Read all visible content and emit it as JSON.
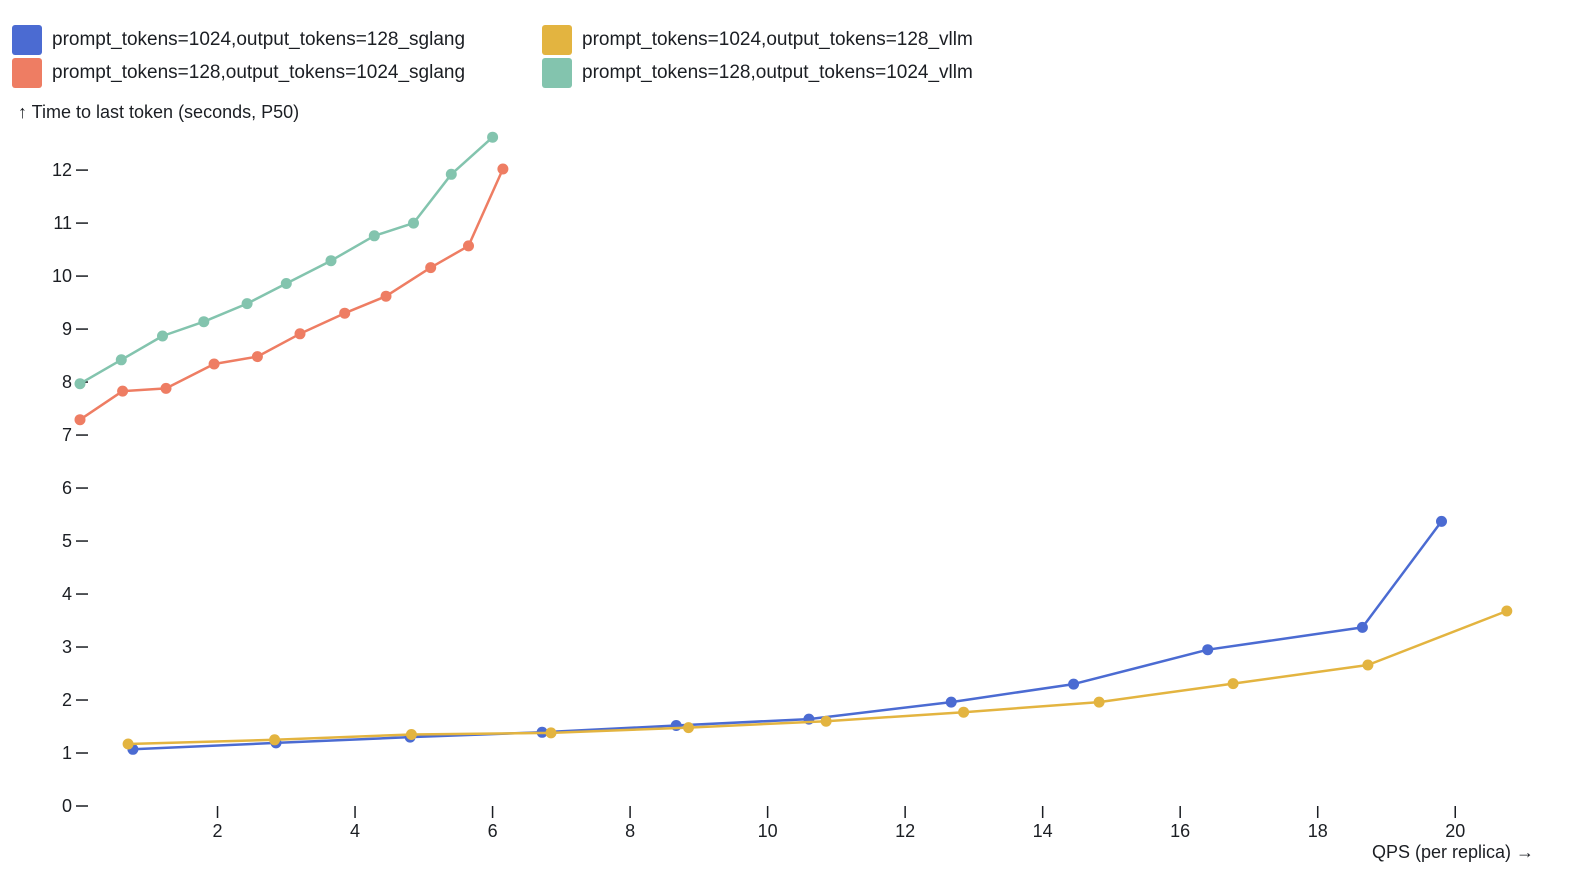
{
  "chart_data": {
    "type": "line",
    "title": "",
    "xlabel": "QPS (per replica) →",
    "ylabel": "↑ Time to last token (seconds, P50)",
    "xlim": [
      0,
      21
    ],
    "ylim": [
      0,
      12.7
    ],
    "x_ticks": [
      2,
      4,
      6,
      8,
      10,
      12,
      14,
      16,
      18,
      20
    ],
    "y_ticks": [
      0,
      1,
      2,
      3,
      4,
      5,
      6,
      7,
      8,
      9,
      10,
      11,
      12
    ],
    "grid": false,
    "legend_position": "top-left",
    "series": [
      {
        "name": "prompt_tokens=1024,output_tokens=128_sglang",
        "color": "#4b6bd2",
        "points": [
          [
            0.77,
            1.07
          ],
          [
            2.85,
            1.19
          ],
          [
            4.8,
            1.3
          ],
          [
            6.72,
            1.39
          ],
          [
            8.67,
            1.52
          ],
          [
            10.6,
            1.64
          ],
          [
            12.67,
            1.96
          ],
          [
            14.45,
            2.3
          ],
          [
            16.4,
            2.95
          ],
          [
            18.65,
            3.37
          ],
          [
            19.8,
            5.37
          ]
        ]
      },
      {
        "name": "prompt_tokens=1024,output_tokens=128_vllm",
        "color": "#e3b440",
        "points": [
          [
            0.7,
            1.17
          ],
          [
            2.83,
            1.25
          ],
          [
            4.82,
            1.35
          ],
          [
            6.85,
            1.38
          ],
          [
            8.85,
            1.48
          ],
          [
            10.85,
            1.6
          ],
          [
            12.85,
            1.77
          ],
          [
            14.82,
            1.96
          ],
          [
            16.77,
            2.31
          ],
          [
            18.73,
            2.66
          ],
          [
            20.75,
            3.68
          ]
        ]
      },
      {
        "name": "prompt_tokens=128,output_tokens=1024_sglang",
        "color": "#ee7d63",
        "points": [
          [
            0.0,
            7.29
          ],
          [
            0.62,
            7.83
          ],
          [
            1.25,
            7.88
          ],
          [
            1.95,
            8.34
          ],
          [
            2.58,
            8.48
          ],
          [
            3.2,
            8.91
          ],
          [
            3.85,
            9.3
          ],
          [
            4.45,
            9.62
          ],
          [
            5.1,
            10.16
          ],
          [
            5.65,
            10.57
          ],
          [
            6.15,
            12.02
          ]
        ]
      },
      {
        "name": "prompt_tokens=128,output_tokens=1024_vllm",
        "color": "#83c4ae",
        "points": [
          [
            0.0,
            7.97
          ],
          [
            0.6,
            8.42
          ],
          [
            1.2,
            8.87
          ],
          [
            1.8,
            9.14
          ],
          [
            2.43,
            9.48
          ],
          [
            3.0,
            9.86
          ],
          [
            3.65,
            10.29
          ],
          [
            4.28,
            10.76
          ],
          [
            4.85,
            11.0
          ],
          [
            5.4,
            11.92
          ],
          [
            6.0,
            12.62
          ]
        ]
      }
    ]
  }
}
